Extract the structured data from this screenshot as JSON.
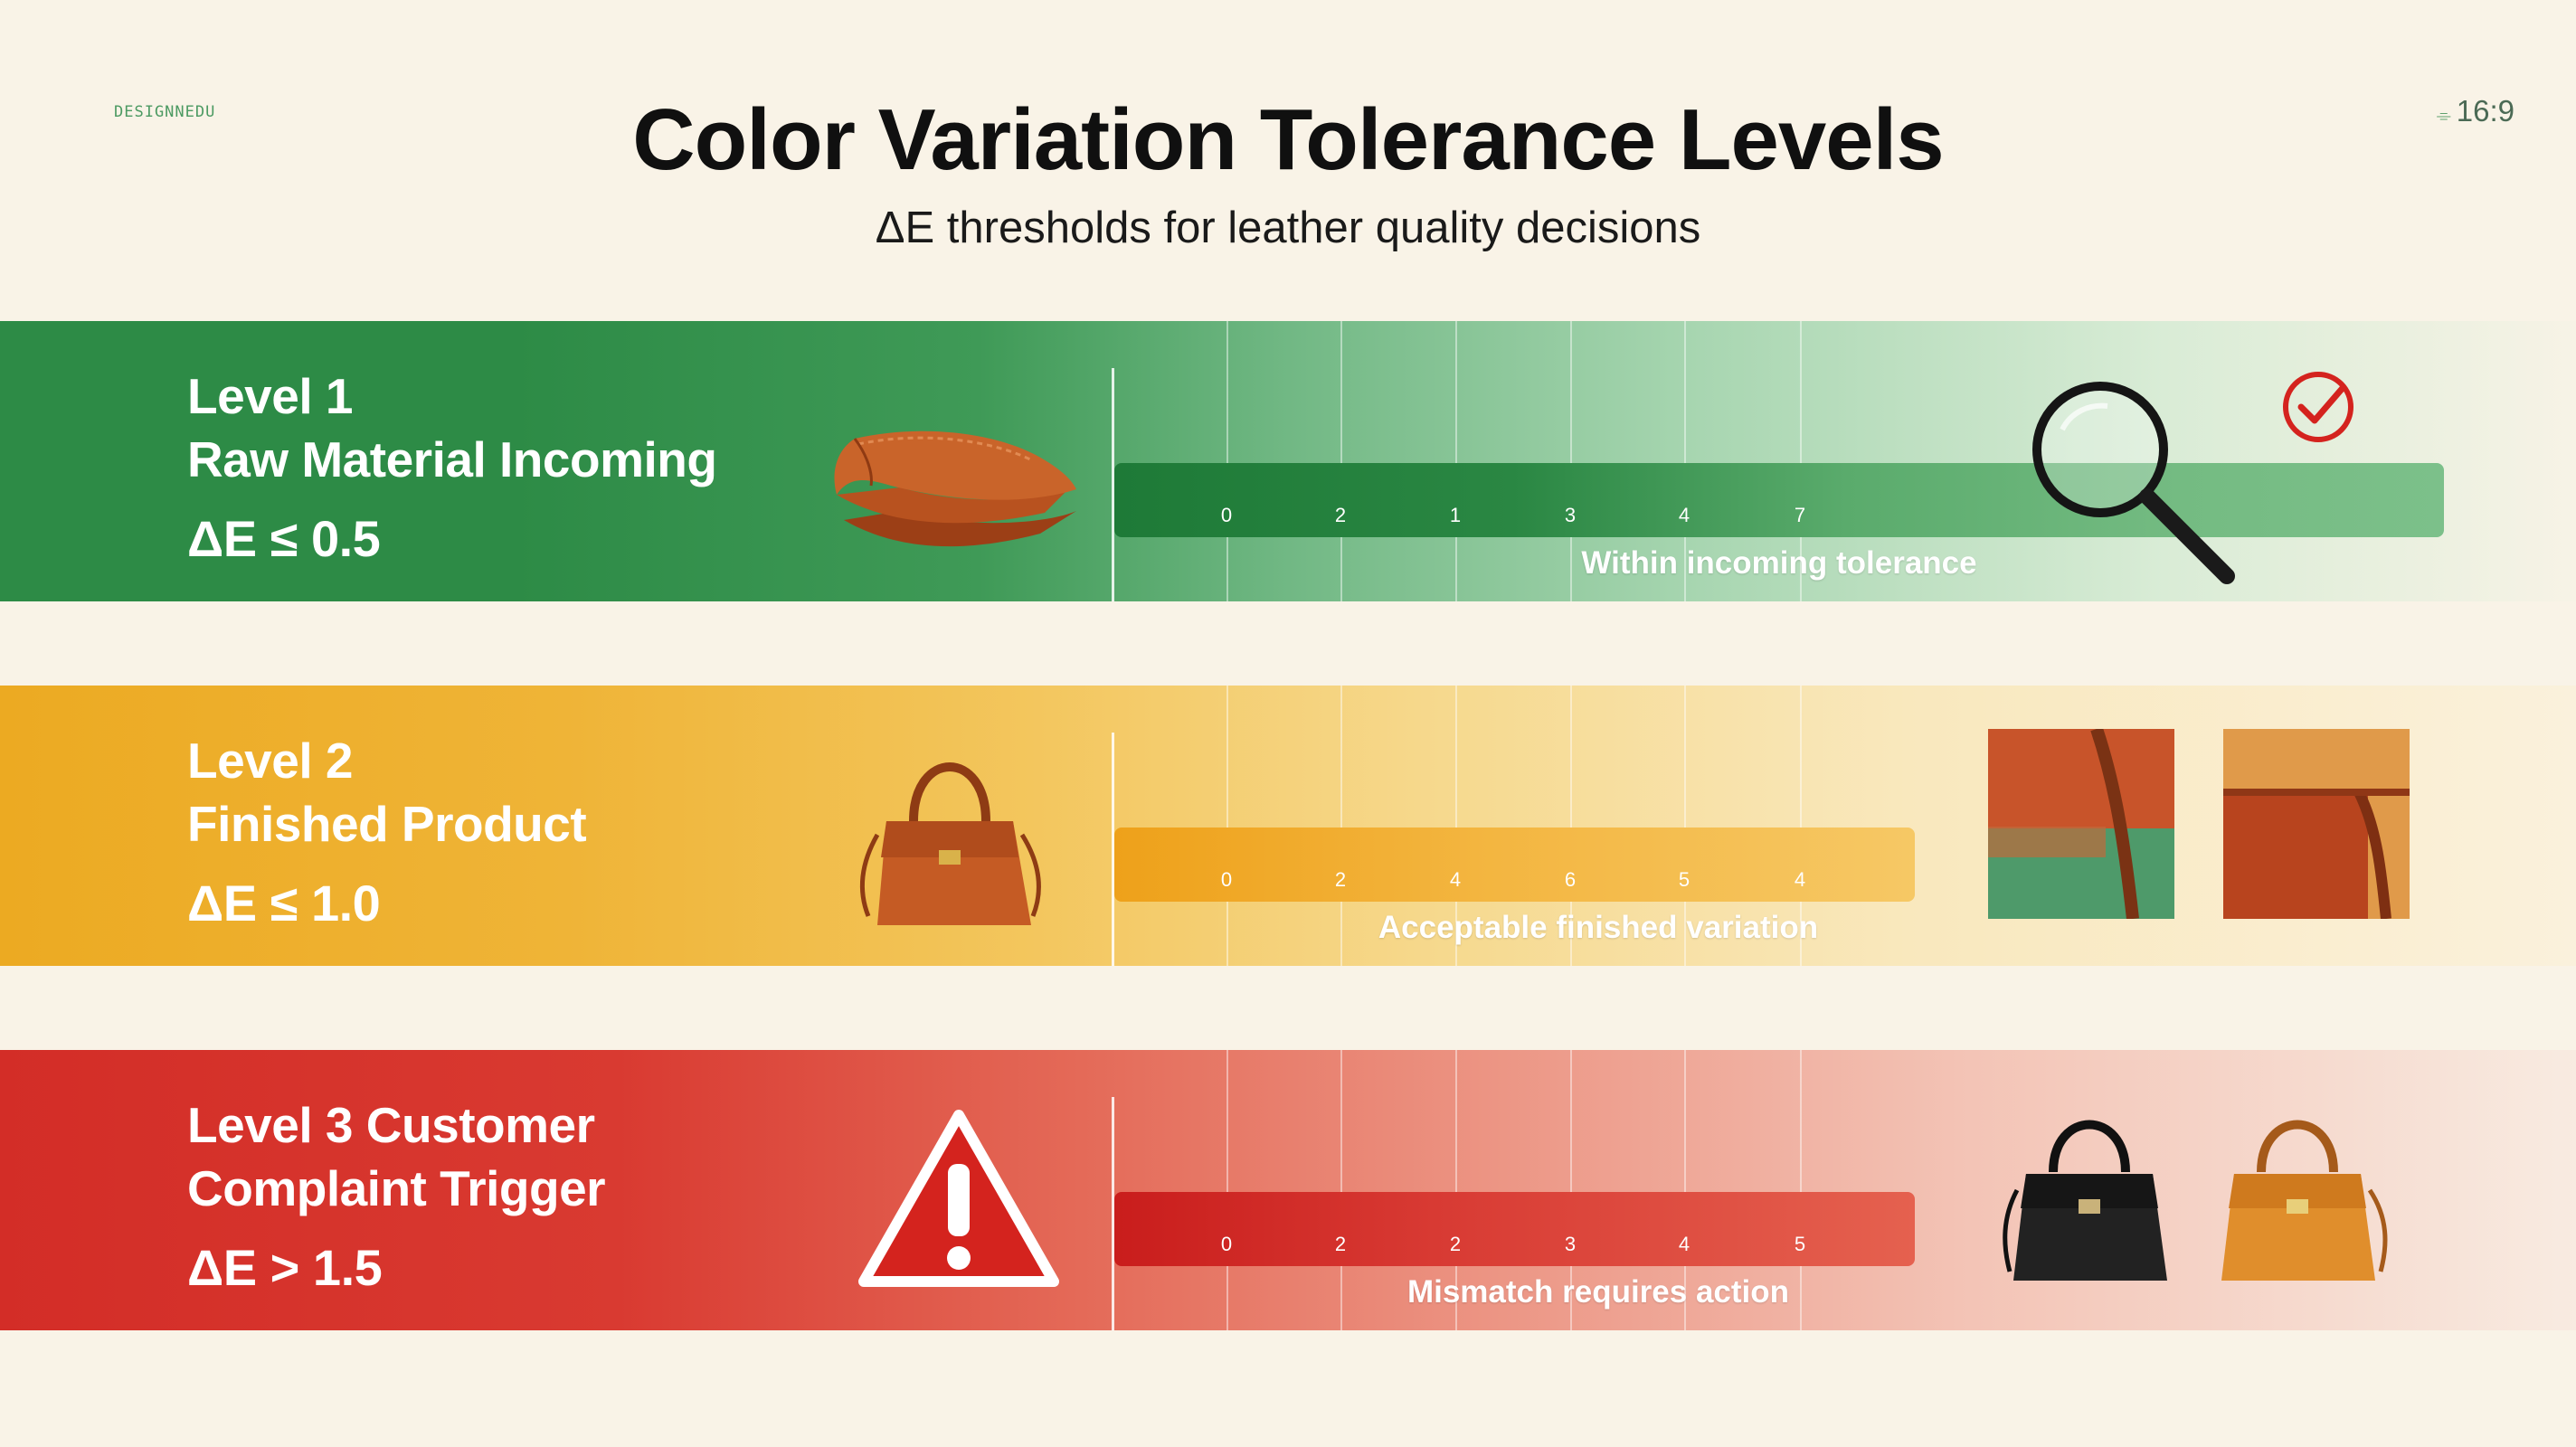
{
  "header": {
    "corner_left": "DESIGNNEDU",
    "corner_right": "16:9",
    "title": "Color Variation Tolerance Levels",
    "subtitle": "ΔE thresholds for leather quality decisions"
  },
  "levels": [
    {
      "line1": "Level 1",
      "line2": "Raw Material Incoming",
      "metric": "ΔE ≤ 0.5",
      "ticks": [
        "0",
        "2",
        "1",
        "3",
        "4",
        "7"
      ],
      "caption": "Within incoming tolerance",
      "icons": [
        "leather-swatch-icon",
        "magnifier-icon",
        "check-mark-icon"
      ]
    },
    {
      "line1": "Level 2",
      "line2": "Finished Product",
      "metric": "ΔE ≤ 1.0",
      "ticks": [
        "0",
        "2",
        "4",
        "6",
        "5",
        "4"
      ],
      "caption": "Acceptable finished variation",
      "icons": [
        "handbag-icon",
        "leather-sample-icon"
      ]
    },
    {
      "line1": "Level 3 Customer",
      "line2": "Complaint Trigger",
      "metric": "ΔE > 1.5",
      "ticks": [
        "0",
        "2",
        "2",
        "3",
        "4",
        "5"
      ],
      "caption": "Mismatch requires action",
      "icons": [
        "warning-icon",
        "handbag-icon"
      ]
    }
  ],
  "colors": {
    "level1": "#2d8b46",
    "level2": "#ecaa22",
    "level3": "#d32d27",
    "background": "#f9f3e7",
    "alert": "#d4231e"
  }
}
